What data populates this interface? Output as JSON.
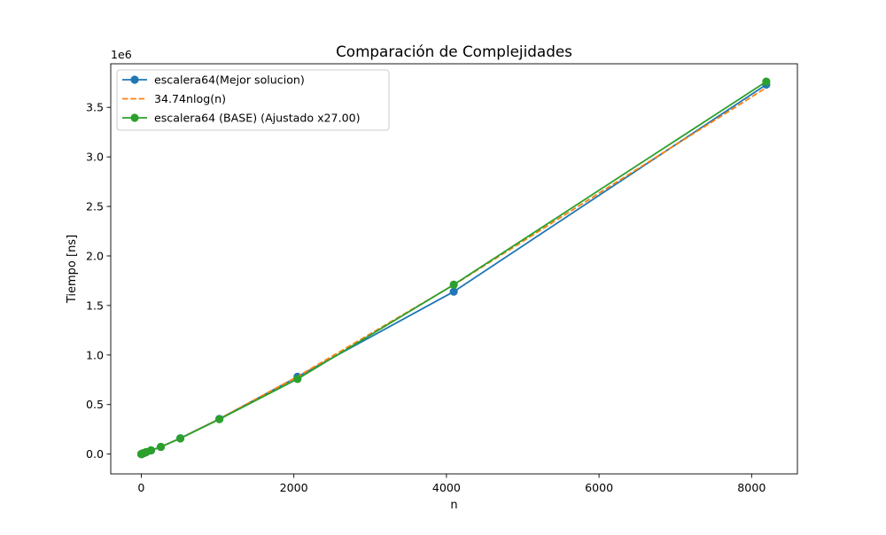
{
  "chart_data": {
    "type": "line",
    "title": "Comparación de Complejidades",
    "xlabel": "n",
    "ylabel": "Tiempo [ns]",
    "y_scale_label": "1e6",
    "xlim": [
      -400,
      8600
    ],
    "ylim": [
      -200000,
      3940000
    ],
    "x_ticks": [
      0,
      2000,
      4000,
      6000,
      8000
    ],
    "x_tick_labels": [
      "0",
      "2000",
      "4000",
      "6000",
      "8000"
    ],
    "y_ticks": [
      0,
      500000,
      1000000,
      1500000,
      2000000,
      2500000,
      3000000,
      3500000
    ],
    "y_tick_labels": [
      "0.0",
      "0.5",
      "1.0",
      "1.5",
      "2.0",
      "2.5",
      "3.0",
      "3.5"
    ],
    "grid": false,
    "legend_position": "top-left",
    "series": [
      {
        "name": "escalera64(Mejor solucion)",
        "color": "#1f77b4",
        "style": "solid",
        "marker": "circle",
        "x": [
          1,
          2,
          4,
          8,
          16,
          32,
          64,
          128,
          256,
          512,
          1024,
          2048,
          4096,
          8192
        ],
        "y": [
          200,
          500,
          1000,
          2000,
          4500,
          9500,
          19000,
          37000,
          72000,
          160000,
          355000,
          780000,
          1640000,
          3730000
        ]
      },
      {
        "name": "34.74nlog(n)",
        "color": "#ff7f0e",
        "style": "dashed",
        "marker": "none",
        "x": [
          1,
          2,
          4,
          8,
          16,
          32,
          64,
          128,
          256,
          512,
          1024,
          2048,
          4096,
          8192
        ],
        "y": [
          0,
          69,
          278,
          834,
          2224,
          5558,
          13340,
          31130,
          71150,
          160100,
          355700,
          782700,
          1708000,
          3699000
        ]
      },
      {
        "name": "escalera64 (BASE) (Ajustado x27.00)",
        "color": "#2ca02c",
        "style": "solid",
        "marker": "circle",
        "x": [
          1,
          2,
          4,
          8,
          16,
          32,
          64,
          128,
          256,
          512,
          1024,
          2048,
          4096,
          8192
        ],
        "y": [
          300,
          600,
          1200,
          2300,
          5000,
          10000,
          20000,
          38000,
          73000,
          158000,
          352000,
          758000,
          1710000,
          3760000
        ]
      }
    ]
  }
}
